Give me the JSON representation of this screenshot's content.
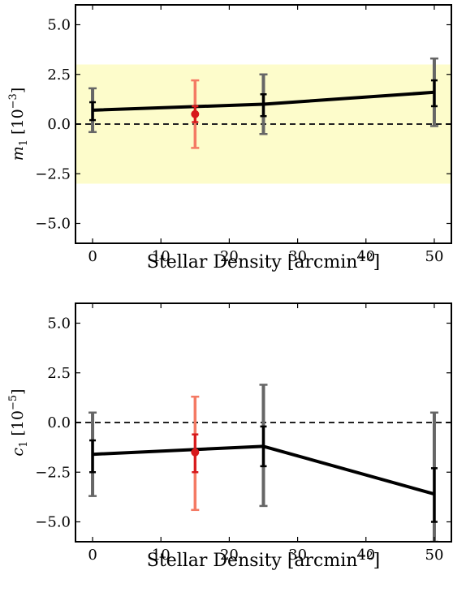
{
  "chart_data": [
    {
      "type": "line",
      "panel": "top",
      "ylabel": {
        "symbol": "m",
        "subscript": "1",
        "unit_base": "[10",
        "unit_exp": "−3",
        "unit_close": "]"
      },
      "xlabel": {
        "base": "Stellar Density [arcmin",
        "exp": "−2",
        "close": "]"
      },
      "xlim": [
        -2.5,
        52.5
      ],
      "ylim": [
        -6,
        6
      ],
      "xticks": [
        0,
        10,
        20,
        30,
        40,
        50
      ],
      "xtick_labels": [
        "0",
        "10",
        "20",
        "30",
        "40",
        "50"
      ],
      "yticks": [
        -5,
        -2.5,
        0,
        2.5,
        5
      ],
      "ytick_labels": [
        "−5.0",
        "−2.5",
        "0.0",
        "2.5",
        "5.0"
      ],
      "band": {
        "y0": -3,
        "y1": 3,
        "color": "#fdfccb"
      },
      "reference_line": {
        "y": 0,
        "style": "dashed"
      },
      "line": {
        "x": [
          0,
          25,
          50
        ],
        "y": [
          0.7,
          1.0,
          1.6
        ],
        "color": "#000000"
      },
      "outer_errorbars": [
        {
          "x": 0,
          "lo": -0.4,
          "hi": 1.8,
          "color": "#666666"
        },
        {
          "x": 25,
          "lo": -0.5,
          "hi": 2.5,
          "color": "#666666"
        },
        {
          "x": 50,
          "lo": -0.1,
          "hi": 3.3,
          "color": "#666666"
        }
      ],
      "inner_errorbars": [
        {
          "x": 0,
          "lo": 0.2,
          "hi": 1.1,
          "color": "#000000"
        },
        {
          "x": 25,
          "lo": 0.4,
          "hi": 1.5,
          "color": "#000000"
        },
        {
          "x": 50,
          "lo": 0.9,
          "hi": 2.2,
          "color": "#000000"
        }
      ],
      "highlight_point": {
        "x": 15,
        "y": 0.5,
        "outer_lo": -1.2,
        "outer_hi": 2.2,
        "inner_lo": 0.1,
        "inner_hi": 0.9,
        "outer_color": "#f47a64",
        "inner_color": "#d7191c"
      }
    },
    {
      "type": "line",
      "panel": "bottom",
      "ylabel": {
        "symbol": "c",
        "subscript": "1",
        "unit_base": "[10",
        "unit_exp": "−5",
        "unit_close": "]"
      },
      "xlabel": {
        "base": "Stellar Density [arcmin",
        "exp": "−2",
        "close": "]"
      },
      "xlim": [
        -2.5,
        52.5
      ],
      "ylim": [
        -6,
        6
      ],
      "xticks": [
        0,
        10,
        20,
        30,
        40,
        50
      ],
      "xtick_labels": [
        "0",
        "10",
        "20",
        "30",
        "40",
        "50"
      ],
      "yticks": [
        -5,
        -2.5,
        0,
        2.5,
        5
      ],
      "ytick_labels": [
        "−5.0",
        "−2.5",
        "0.0",
        "2.5",
        "5.0"
      ],
      "reference_line": {
        "y": 0,
        "style": "dashed"
      },
      "line": {
        "x": [
          0,
          25,
          50
        ],
        "y": [
          -1.6,
          -1.2,
          -3.6
        ],
        "color": "#000000"
      },
      "outer_errorbars": [
        {
          "x": 0,
          "lo": -3.7,
          "hi": 0.5,
          "color": "#666666"
        },
        {
          "x": 25,
          "lo": -4.2,
          "hi": 1.9,
          "color": "#666666"
        },
        {
          "x": 50,
          "lo": -6.0,
          "hi": 0.5,
          "color": "#666666"
        }
      ],
      "inner_errorbars": [
        {
          "x": 0,
          "lo": -2.5,
          "hi": -0.9,
          "color": "#000000"
        },
        {
          "x": 25,
          "lo": -2.2,
          "hi": -0.2,
          "color": "#000000"
        },
        {
          "x": 50,
          "lo": -5.0,
          "hi": -2.3,
          "color": "#000000"
        }
      ],
      "highlight_point": {
        "x": 15,
        "y": -1.5,
        "outer_lo": -4.4,
        "outer_hi": 1.3,
        "inner_lo": -2.5,
        "inner_hi": -0.6,
        "outer_color": "#f47a64",
        "inner_color": "#d7191c"
      }
    }
  ]
}
